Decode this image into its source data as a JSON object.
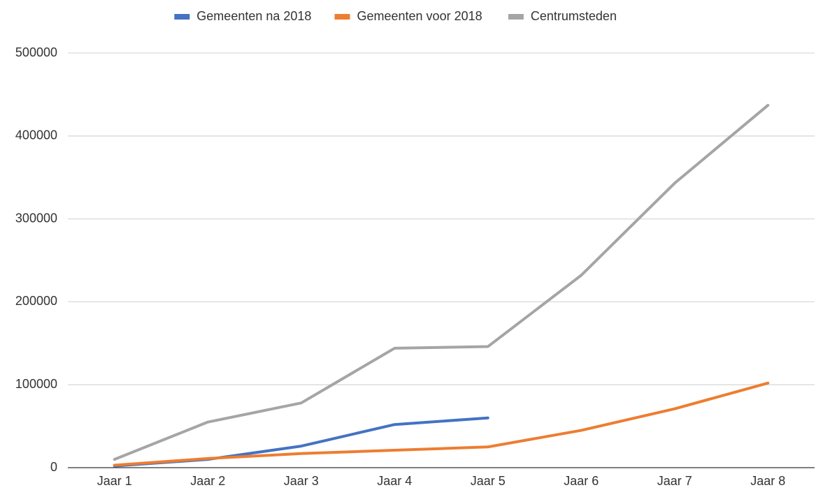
{
  "chart_data": {
    "type": "line",
    "categories": [
      "Jaar 1",
      "Jaar 2",
      "Jaar 3",
      "Jaar 4",
      "Jaar 5",
      "Jaar 6",
      "Jaar 7",
      "Jaar 8"
    ],
    "series": [
      {
        "name": "Gemeenten na 2018",
        "color": "#4472c4",
        "values": [
          2000,
          10000,
          26000,
          52000,
          60000,
          null,
          null,
          null
        ]
      },
      {
        "name": "Gemeenten voor 2018",
        "color": "#ed7d31",
        "values": [
          3000,
          11000,
          17000,
          21000,
          25000,
          45000,
          71000,
          102000
        ]
      },
      {
        "name": "Centrumsteden",
        "color": "#a5a5a5",
        "values": [
          10000,
          55000,
          78000,
          144000,
          146000,
          232000,
          343000,
          437000
        ]
      }
    ],
    "ylim": [
      0,
      500000
    ],
    "yticks": [
      0,
      100000,
      200000,
      300000,
      400000,
      500000
    ],
    "grid": true,
    "legend": "top"
  }
}
